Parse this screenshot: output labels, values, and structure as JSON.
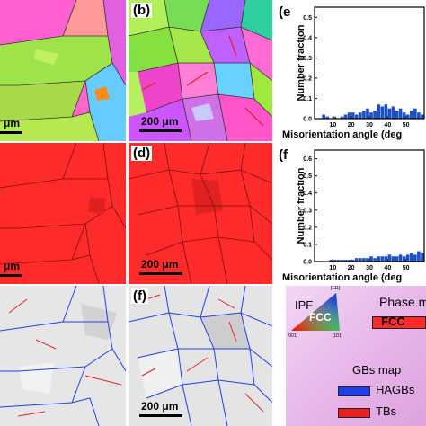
{
  "panels": {
    "a": {
      "label": ""
    },
    "b": {
      "label": "(b)",
      "scale": "200 μm"
    },
    "a_scale": "μm",
    "c_scale": "μm",
    "c": {
      "label": ""
    },
    "d": {
      "label": "(d)",
      "scale": "200 μm"
    },
    "e": {
      "label": ""
    },
    "f": {
      "label": "(f)",
      "scale": "200 μm"
    },
    "e1": {
      "label": "(e"
    },
    "f1": {
      "label": "(f"
    }
  },
  "chart_data": [
    {
      "type": "bar",
      "panel": "e1",
      "ylabel": "Number fraction",
      "xlabel": "Misorientation angle (deg",
      "yticks": [
        "0.0",
        "0.1",
        "0.2",
        "0.3",
        "0.4",
        "0.5"
      ],
      "xticks": [
        "10",
        "20",
        "30",
        "40",
        "50"
      ],
      "ylim": [
        0,
        0.55
      ],
      "xlim": [
        0,
        60
      ],
      "x": [
        5,
        7,
        9,
        11,
        13,
        15,
        17,
        19,
        21,
        23,
        25,
        27,
        29,
        31,
        33,
        35,
        37,
        39,
        41,
        43,
        45,
        47,
        49,
        51,
        53,
        55,
        57,
        59
      ],
      "values": [
        0.02,
        0.01,
        0.0,
        0.01,
        0.0,
        0.01,
        0.02,
        0.03,
        0.03,
        0.02,
        0.03,
        0.04,
        0.05,
        0.03,
        0.04,
        0.07,
        0.06,
        0.07,
        0.05,
        0.06,
        0.04,
        0.05,
        0.03,
        0.02,
        0.04,
        0.05,
        0.03,
        0.02
      ],
      "color": "#1f4fc4"
    },
    {
      "type": "bar",
      "panel": "f1",
      "ylabel": "Number fraction",
      "xlabel": "Misorientation angle (deg",
      "yticks": [
        "0.0",
        "0.1",
        "0.2",
        "0.3",
        "0.4",
        "0.5",
        "0.6"
      ],
      "xticks": [
        "10",
        "20",
        "30",
        "40",
        "50"
      ],
      "ylim": [
        0,
        0.65
      ],
      "xlim": [
        0,
        60
      ],
      "x": [
        5,
        7,
        9,
        11,
        13,
        15,
        17,
        19,
        21,
        23,
        25,
        27,
        29,
        31,
        33,
        35,
        37,
        39,
        41,
        43,
        45,
        47,
        49,
        51,
        53,
        55,
        57,
        59
      ],
      "values": [
        0.0,
        0.0,
        0.01,
        0.01,
        0.01,
        0.01,
        0.01,
        0.01,
        0.01,
        0.02,
        0.02,
        0.02,
        0.02,
        0.03,
        0.02,
        0.03,
        0.03,
        0.03,
        0.04,
        0.03,
        0.03,
        0.04,
        0.03,
        0.04,
        0.05,
        0.04,
        0.06,
        0.05
      ],
      "color": "#1f4fc4"
    }
  ],
  "legend": {
    "ipf_title": "IPF",
    "ipf_phase": "FCC",
    "corner_001": "[001]",
    "corner_101": "[101]",
    "corner_111": "[111]",
    "phase_title": "Phase m",
    "phase_label": "FCC",
    "gbs_title": "GBs map",
    "hagbs": "HAGBs",
    "tbs": "TBs",
    "colors": {
      "fcc": "#ff2b2b",
      "hagbs": "#2040e8",
      "tbs": "#e82020"
    }
  }
}
